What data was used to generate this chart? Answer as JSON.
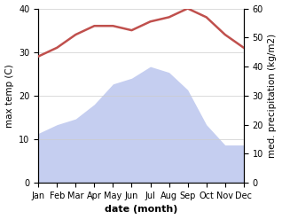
{
  "months": [
    "Jan",
    "Feb",
    "Mar",
    "Apr",
    "May",
    "Jun",
    "Jul",
    "Aug",
    "Sep",
    "Oct",
    "Nov",
    "Dec"
  ],
  "month_indices": [
    1,
    2,
    3,
    4,
    5,
    6,
    7,
    8,
    9,
    10,
    11,
    12
  ],
  "temperature": [
    29,
    31,
    34,
    36,
    36,
    35,
    37,
    38,
    40,
    38,
    34,
    31
  ],
  "precipitation": [
    17,
    20,
    22,
    27,
    34,
    36,
    40,
    38,
    32,
    20,
    13,
    13
  ],
  "temp_color": "#c0504d",
  "precip_fill_color": "#c5cef0",
  "ylabel_left": "max temp (C)",
  "ylabel_right": "med. precipitation (kg/m2)",
  "ylim_left": [
    0,
    40
  ],
  "ylim_right": [
    0,
    60
  ],
  "yticks_left": [
    0,
    10,
    20,
    30,
    40
  ],
  "yticks_right": [
    0,
    10,
    20,
    30,
    40,
    50,
    60
  ],
  "xlabel": "date (month)",
  "bg_color": "#ffffff",
  "grid_color": "#cccccc",
  "temp_linewidth": 1.8,
  "xlabel_fontsize": 8,
  "ylabel_fontsize": 7.5,
  "tick_fontsize": 7
}
